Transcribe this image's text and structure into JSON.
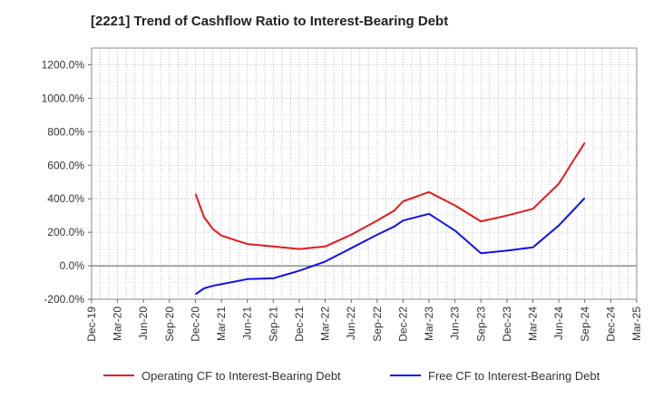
{
  "title": "[2221]  Trend of Cashflow Ratio to Interest-Bearing Debt",
  "chart_data": {
    "type": "line",
    "title": "[2221]  Trend of Cashflow Ratio to Interest-Bearing Debt",
    "xlabel": "",
    "ylabel": "",
    "x_ticks": [
      "Dec-19",
      "Mar-20",
      "Jun-20",
      "Sep-20",
      "Dec-20",
      "Mar-21",
      "Jun-21",
      "Sep-21",
      "Dec-21",
      "Mar-22",
      "Jun-22",
      "Sep-22",
      "Dec-22",
      "Mar-23",
      "Jun-23",
      "Sep-23",
      "Dec-23",
      "Mar-24",
      "Jun-24",
      "Sep-24",
      "Dec-24",
      "Mar-25"
    ],
    "y_ticks": [
      -200,
      0,
      200,
      400,
      600,
      800,
      1000,
      1200
    ],
    "y_tick_labels": [
      "-200.0%",
      "0.0%",
      "200.0%",
      "400.0%",
      "600.0%",
      "800.0%",
      "1000.0%",
      "1200.0%"
    ],
    "ylim": [
      -200,
      1300
    ],
    "grid": true,
    "legend_position": "bottom",
    "series": [
      {
        "name": "Operating CF to Interest-Bearing Debt",
        "color": "#e31a1c",
        "x": [
          "2020-12",
          "2021-01",
          "2021-02",
          "2021-03",
          "2021-06",
          "2021-09",
          "2021-12",
          "2022-03",
          "2022-06",
          "2022-09",
          "2022-11",
          "2022-12",
          "2023-03",
          "2023-06",
          "2023-09",
          "2023-12",
          "2024-03",
          "2024-06",
          "2024-09"
        ],
        "values": [
          430,
          290,
          220,
          180,
          130,
          115,
          100,
          115,
          185,
          270,
          330,
          385,
          440,
          360,
          265,
          300,
          340,
          490,
          735
        ]
      },
      {
        "name": "Free CF to Interest-Bearing Debt",
        "color": "#1010ee",
        "x": [
          "2020-12",
          "2021-01",
          "2021-02",
          "2021-03",
          "2021-06",
          "2021-09",
          "2021-12",
          "2022-03",
          "2022-06",
          "2022-09",
          "2022-11",
          "2022-12",
          "2023-03",
          "2023-06",
          "2023-09",
          "2023-12",
          "2024-03",
          "2024-06",
          "2024-09"
        ],
        "values": [
          -170,
          -135,
          -120,
          -110,
          -80,
          -75,
          -30,
          25,
          105,
          185,
          235,
          270,
          310,
          210,
          75,
          90,
          110,
          240,
          405
        ]
      }
    ]
  }
}
